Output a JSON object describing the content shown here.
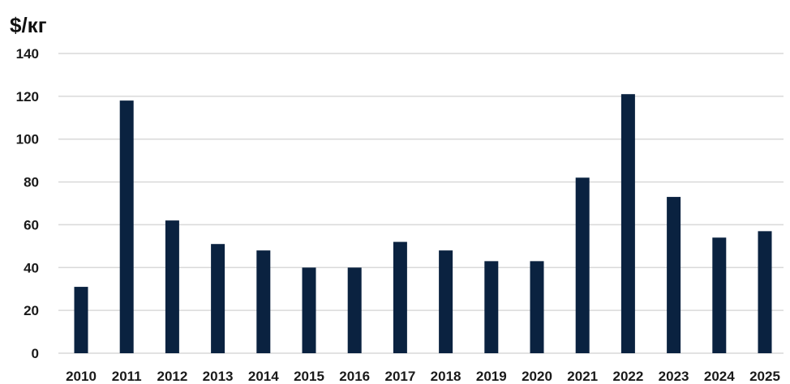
{
  "chart_data": {
    "type": "bar",
    "ylabel": "$/кг",
    "categories": [
      "2010",
      "2011",
      "2012",
      "2013",
      "2014",
      "2015",
      "2016",
      "2017",
      "2018",
      "2019",
      "2020",
      "2021",
      "2022",
      "2023",
      "2024",
      "2025"
    ],
    "values": [
      31,
      118,
      62,
      51,
      48,
      40,
      40,
      52,
      48,
      43,
      43,
      82,
      121,
      73,
      54,
      57
    ],
    "ylim": [
      0,
      140
    ],
    "yticks": [
      0,
      20,
      40,
      60,
      80,
      100,
      120,
      140
    ],
    "grid": true,
    "legend": "none",
    "bar_color": "#0a2240",
    "grid_color": "#d9d9d9"
  }
}
